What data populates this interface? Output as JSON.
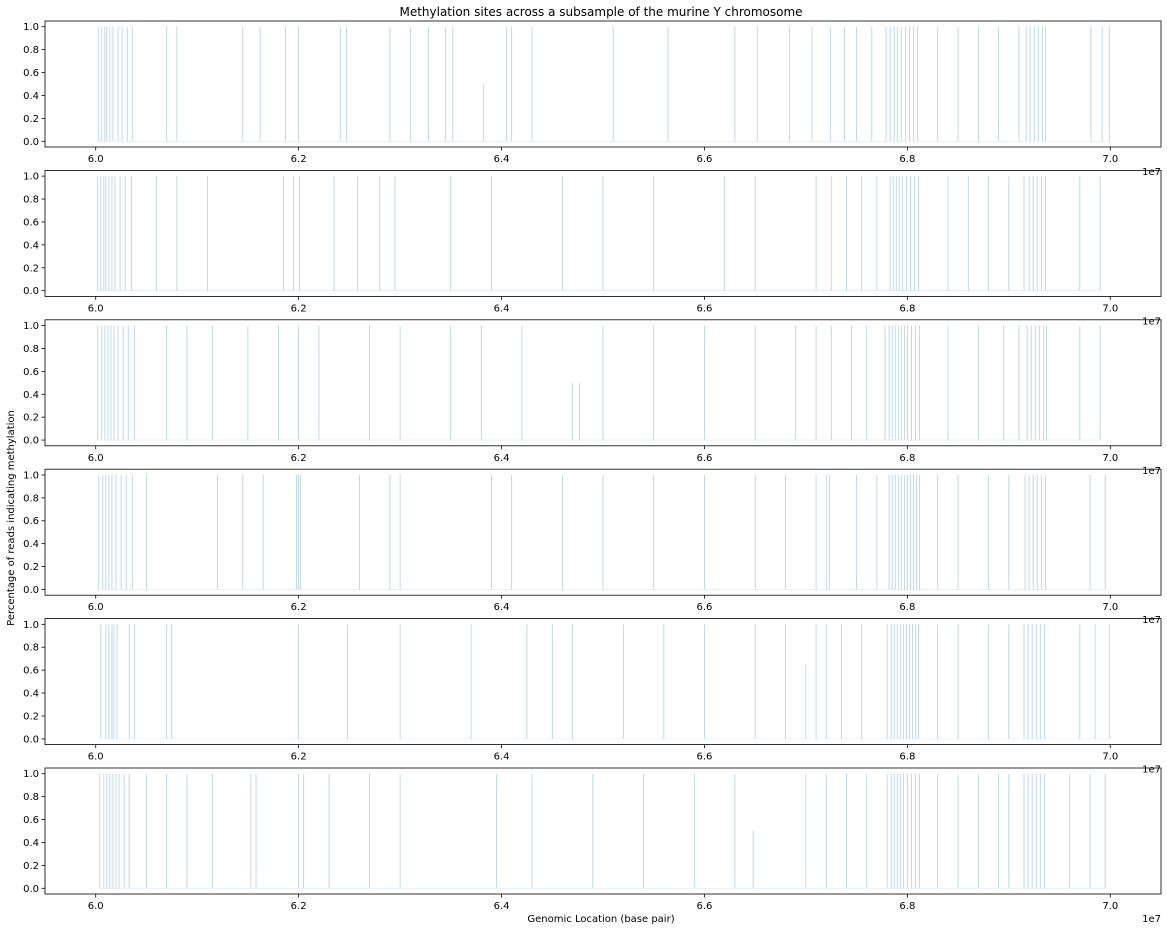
{
  "figure": {
    "title": "Methylation sites across a subsample of the murine Y chromosome",
    "xlabel": "Genomic Location (base pair)",
    "ylabel": "Percentage of reads indicating methylation",
    "offset_label": "1e7"
  },
  "colors": {
    "line": "#1f77b4",
    "axes": "#000000",
    "background": "#ffffff"
  },
  "chart_data": {
    "type": "line",
    "panel_count": 6,
    "sharex": true,
    "xlim": [
      59500000,
      70500000
    ],
    "ylim": [
      -0.05,
      1.05
    ],
    "x_ticks": [
      60000000,
      62000000,
      64000000,
      66000000,
      68000000,
      70000000
    ],
    "x_tick_labels": [
      "6.0",
      "6.2",
      "6.4",
      "6.6",
      "6.8",
      "7.0"
    ],
    "y_ticks": [
      0,
      0.2,
      0.4,
      0.6,
      0.8,
      1.0
    ],
    "y_tick_labels": [
      "0.0",
      "0.2",
      "0.4",
      "0.6",
      "0.8",
      "1.0"
    ],
    "grid": false,
    "legend": "none",
    "series_style": "thin translucent vertical spikes from 0 to the methylation fraction at each site",
    "panels": [
      {
        "name": "",
        "x": [
          60030000,
          60060000,
          60090000,
          60110000,
          60140000,
          60170000,
          60220000,
          60260000,
          60310000,
          60360000,
          60700000,
          60800000,
          61450000,
          61620000,
          61870000,
          62000000,
          62410000,
          62470000,
          62900000,
          63100000,
          63280000,
          63450000,
          63520000,
          63820000,
          64050000,
          64100000,
          64300000,
          65100000,
          65640000,
          66300000,
          66520000,
          66840000,
          67060000,
          67240000,
          67380000,
          67500000,
          67650000,
          67790000,
          67830000,
          67870000,
          67900000,
          67940000,
          67980000,
          68020000,
          68060000,
          68100000,
          68300000,
          68500000,
          68700000,
          68900000,
          69100000,
          69170000,
          69210000,
          69250000,
          69290000,
          69330000,
          69360000,
          69810000,
          69920000,
          69990000
        ],
        "y": [
          1,
          1,
          1,
          1,
          1,
          1,
          1,
          1,
          1,
          1,
          1,
          1,
          1,
          1,
          1,
          1,
          1,
          1,
          1,
          1,
          1,
          1,
          1,
          0.5,
          1,
          1,
          1,
          1,
          1,
          1,
          1,
          1,
          1,
          1,
          1,
          1,
          1,
          1,
          1,
          1,
          1,
          1,
          1,
          1,
          1,
          1,
          1,
          1,
          1,
          1,
          1,
          1,
          1,
          1,
          1,
          1,
          1,
          1,
          1,
          1
        ]
      },
      {
        "name": "",
        "x": [
          60020000,
          60050000,
          60080000,
          60100000,
          60130000,
          60160000,
          60190000,
          60240000,
          60290000,
          60350000,
          60600000,
          60800000,
          61100000,
          61850000,
          61950000,
          62010000,
          62350000,
          62580000,
          62800000,
          62950000,
          63500000,
          63900000,
          64600000,
          65000000,
          65500000,
          66200000,
          66500000,
          67100000,
          67250000,
          67400000,
          67550000,
          67700000,
          67830000,
          67860000,
          67890000,
          67920000,
          67950000,
          67990000,
          68030000,
          68070000,
          68110000,
          68400000,
          68600000,
          68800000,
          69000000,
          69150000,
          69200000,
          69240000,
          69280000,
          69320000,
          69360000,
          69700000,
          69900000
        ],
        "y": [
          1,
          1,
          1,
          1,
          1,
          1,
          1,
          1,
          1,
          1,
          1,
          1,
          1,
          1,
          1,
          1,
          1,
          1,
          1,
          1,
          1,
          1,
          1,
          1,
          1,
          1,
          1,
          1,
          1,
          1,
          1,
          1,
          1,
          1,
          1,
          1,
          1,
          1,
          1,
          1,
          1,
          1,
          1,
          1,
          1,
          1,
          1,
          1,
          1,
          1,
          1,
          1,
          1
        ]
      },
      {
        "name": "",
        "x": [
          60020000,
          60060000,
          60090000,
          60120000,
          60150000,
          60180000,
          60220000,
          60270000,
          60320000,
          60380000,
          60700000,
          60900000,
          61150000,
          61500000,
          61800000,
          62000000,
          62200000,
          62700000,
          63000000,
          63500000,
          63800000,
          64200000,
          64700000,
          64770000,
          65000000,
          65500000,
          66000000,
          66500000,
          66900000,
          67100000,
          67250000,
          67450000,
          67600000,
          67780000,
          67820000,
          67850000,
          67880000,
          67910000,
          67940000,
          67970000,
          68000000,
          68040000,
          68080000,
          68120000,
          68400000,
          68700000,
          68950000,
          69100000,
          69180000,
          69220000,
          69260000,
          69300000,
          69340000,
          69370000,
          69700000,
          69900000
        ],
        "y": [
          1,
          1,
          1,
          1,
          1,
          1,
          1,
          1,
          1,
          1,
          1,
          1,
          1,
          1,
          1,
          1,
          1,
          1,
          1,
          1,
          1,
          1,
          0.5,
          0.5,
          1,
          1,
          1,
          1,
          1,
          1,
          1,
          1,
          1,
          1,
          1,
          1,
          1,
          1,
          1,
          1,
          1,
          1,
          1,
          1,
          1,
          1,
          1,
          1,
          1,
          1,
          1,
          1,
          1,
          1,
          1,
          1
        ]
      },
      {
        "name": "",
        "x": [
          60030000,
          60070000,
          60100000,
          60130000,
          60160000,
          60200000,
          60250000,
          60300000,
          60360000,
          60500000,
          61200000,
          61450000,
          61650000,
          61980000,
          62000000,
          62020000,
          62600000,
          62900000,
          63000000,
          63900000,
          64100000,
          64600000,
          65000000,
          65500000,
          66000000,
          66500000,
          66800000,
          67100000,
          67200000,
          67230000,
          67500000,
          67700000,
          67820000,
          67850000,
          67880000,
          67910000,
          67940000,
          67970000,
          68000000,
          68030000,
          68060000,
          68090000,
          68120000,
          68300000,
          68500000,
          68800000,
          69000000,
          69160000,
          69200000,
          69240000,
          69280000,
          69320000,
          69360000,
          69800000,
          69950000
        ],
        "y": [
          1,
          1,
          1,
          1,
          1,
          1,
          1,
          1,
          1,
          1,
          1,
          1,
          1,
          1,
          1,
          1,
          1,
          1,
          1,
          1,
          1,
          1,
          1,
          1,
          1,
          1,
          1,
          1,
          1,
          1,
          1,
          1,
          1,
          1,
          1,
          1,
          1,
          1,
          1,
          1,
          1,
          1,
          1,
          1,
          1,
          1,
          1,
          1,
          1,
          1,
          1,
          1,
          1,
          1,
          1
        ]
      },
      {
        "name": "",
        "x": [
          60050000,
          60100000,
          60130000,
          60160000,
          60180000,
          60210000,
          60330000,
          60380000,
          60700000,
          60750000,
          62000000,
          62480000,
          63000000,
          63700000,
          64250000,
          64500000,
          64700000,
          65200000,
          65600000,
          66000000,
          66500000,
          66800000,
          67000000,
          67100000,
          67200000,
          67350000,
          67550000,
          67800000,
          67840000,
          67870000,
          67900000,
          67930000,
          67960000,
          67990000,
          68020000,
          68050000,
          68080000,
          68110000,
          68300000,
          68500000,
          68800000,
          69000000,
          69150000,
          69190000,
          69230000,
          69270000,
          69310000,
          69350000,
          69700000,
          69850000,
          69990000
        ],
        "y": [
          1,
          1,
          1,
          1,
          1,
          1,
          1,
          1,
          1,
          1,
          1,
          1,
          1,
          1,
          1,
          1,
          1,
          1,
          1,
          1,
          1,
          1,
          0.65,
          1,
          1,
          1,
          1,
          1,
          1,
          1,
          1,
          1,
          1,
          1,
          1,
          1,
          1,
          1,
          1,
          1,
          1,
          1,
          1,
          1,
          1,
          1,
          1,
          1,
          1,
          1,
          1
        ]
      },
      {
        "name": "",
        "x": [
          60040000,
          60080000,
          60110000,
          60140000,
          60170000,
          60200000,
          60230000,
          60280000,
          60330000,
          60500000,
          60700000,
          60900000,
          61150000,
          61530000,
          61580000,
          62000000,
          62050000,
          62300000,
          62700000,
          63000000,
          63950000,
          64300000,
          64900000,
          65400000,
          65900000,
          66300000,
          66480000,
          67000000,
          67200000,
          67400000,
          67600000,
          67800000,
          67840000,
          67870000,
          67900000,
          67930000,
          67960000,
          68000000,
          68040000,
          68080000,
          68120000,
          68300000,
          68500000,
          68700000,
          68900000,
          69000000,
          69150000,
          69190000,
          69230000,
          69270000,
          69310000,
          69350000,
          69600000,
          69800000,
          69950000
        ],
        "y": [
          1,
          1,
          1,
          1,
          1,
          1,
          1,
          1,
          1,
          1,
          1,
          1,
          1,
          1,
          1,
          1,
          1,
          1,
          1,
          1,
          1,
          1,
          1,
          1,
          1,
          1,
          0.5,
          1,
          1,
          1,
          1,
          1,
          1,
          1,
          1,
          1,
          1,
          1,
          1,
          1,
          1,
          1,
          1,
          1,
          1,
          1,
          1,
          1,
          1,
          1,
          1,
          1,
          1,
          1,
          1
        ]
      }
    ]
  }
}
